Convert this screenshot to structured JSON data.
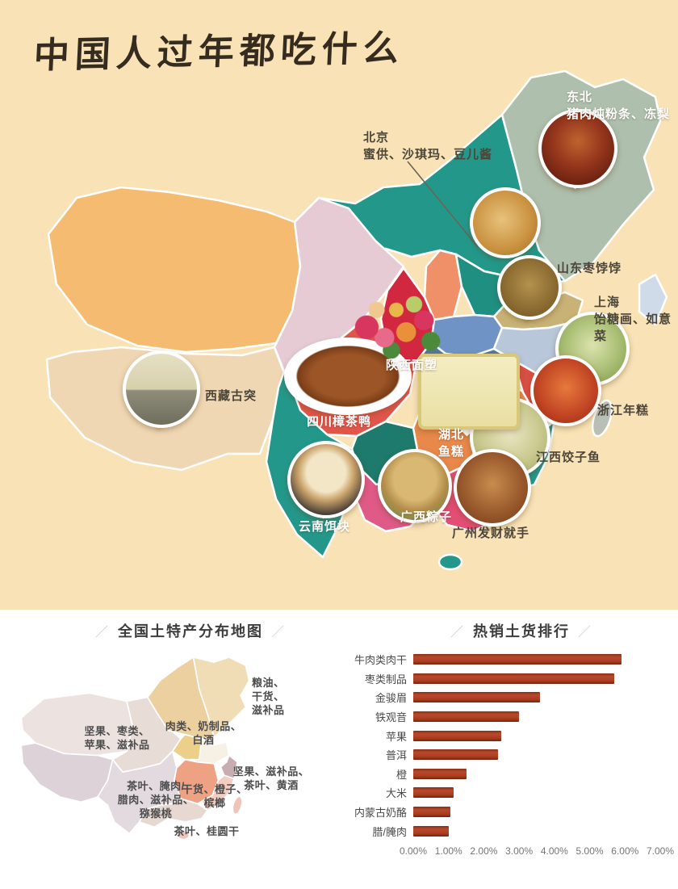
{
  "poster": {
    "title": "中国人过年都吃什么"
  },
  "map": {
    "items": [
      {
        "id": "dongbei",
        "line1": "东北",
        "line2": "猪肉炖粉条、冻梨"
      },
      {
        "id": "beijing",
        "line1": "北京",
        "line2": "蜜供、沙琪玛、豆儿酱"
      },
      {
        "id": "shandong",
        "line1": "山东枣饽饽"
      },
      {
        "id": "shanghai",
        "line1": "上海",
        "line2": "饴糖画、如意菜"
      },
      {
        "id": "shaanxi",
        "line1": "陕西面塑"
      },
      {
        "id": "zhejiang",
        "line1": "浙江年糕"
      },
      {
        "id": "sichuan",
        "line1": "四川樟茶鸭"
      },
      {
        "id": "hubei",
        "line1": "湖北",
        "line2": "鱼糕"
      },
      {
        "id": "jiangxi",
        "line1": "江西饺子鱼"
      },
      {
        "id": "xizang",
        "line1": "西藏古突"
      },
      {
        "id": "yunnan",
        "line1": "云南饵块"
      },
      {
        "id": "guangxi",
        "line1": "广西粽子"
      },
      {
        "id": "guangzhou",
        "line1": "广州发财就手"
      }
    ]
  },
  "specialty_map": {
    "title": "全国土特产分布地图",
    "deco": "／",
    "labels": [
      "粮油、\n干货、\n滋补品",
      "肉类、奶制品、\n白酒",
      "坚果、枣类、\n苹果、滋补品",
      "坚果、滋补品、\n茶叶、黄酒",
      "茶叶、腌肉/\n腊肉、滋补品、\n猕猴桃",
      "干货、橙子、\n槟榔",
      "茶叶、桂圆干"
    ]
  },
  "ranking": {
    "title": "热销土货排行",
    "deco": "／"
  },
  "chart_data": {
    "type": "bar",
    "orientation": "horizontal",
    "title": "热销土货排行",
    "categories": [
      "牛肉类肉干",
      "枣类制品",
      "金骏眉",
      "铁观音",
      "苹果",
      "普洱",
      "橙",
      "大米",
      "内蒙古奶酪",
      "腊/腌肉"
    ],
    "values": [
      5.9,
      5.7,
      3.6,
      3.0,
      2.5,
      2.4,
      1.5,
      1.15,
      1.05,
      1.0
    ],
    "unit": "%",
    "xlim": [
      0,
      7
    ],
    "tick_labels": [
      "0.00%",
      "1.00%",
      "2.00%",
      "3.00%",
      "4.00%",
      "5.00%",
      "6.00%",
      "7.00%"
    ],
    "bar_color": "#a93b20",
    "grid": false,
    "legend": false
  },
  "colors": {
    "background": "#f8e2b6",
    "bar": "#a93b20"
  }
}
